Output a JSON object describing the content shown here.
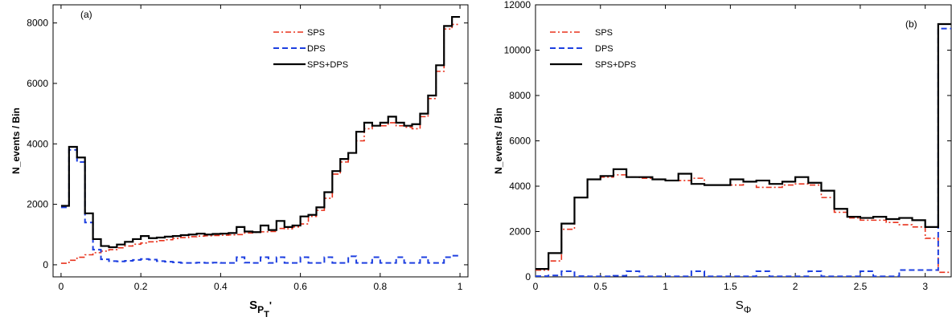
{
  "chart_data": [
    {
      "type": "line",
      "panel_label": "(a)",
      "xlabel": "S",
      "xlabel_sub": "P",
      "xlabel_subsub": "T",
      "xlabel_prime": "'",
      "ylabel": "N_events / Bin",
      "xlim": [
        -0.02,
        1.02
      ],
      "ylim": [
        -400,
        8600
      ],
      "xticks": [
        0,
        0.2,
        0.4,
        0.6,
        0.8,
        1
      ],
      "xtick_labels": [
        "0",
        "0.2",
        "0.4",
        "0.6",
        "0.8",
        "1"
      ],
      "yticks": [
        0,
        2000,
        4000,
        6000,
        8000
      ],
      "ytick_labels": [
        "0",
        "2000",
        "4000",
        "6000",
        "8000"
      ],
      "legend_position": "top-right",
      "bin_edges": [
        0,
        0.02,
        0.04,
        0.06,
        0.08,
        0.1,
        0.12,
        0.14,
        0.16,
        0.18,
        0.2,
        0.22,
        0.24,
        0.26,
        0.28,
        0.3,
        0.32,
        0.34,
        0.36,
        0.38,
        0.4,
        0.42,
        0.44,
        0.46,
        0.48,
        0.5,
        0.52,
        0.54,
        0.56,
        0.58,
        0.6,
        0.62,
        0.64,
        0.66,
        0.68,
        0.7,
        0.72,
        0.74,
        0.76,
        0.78,
        0.8,
        0.82,
        0.84,
        0.86,
        0.88,
        0.9,
        0.92,
        0.94,
        0.96,
        0.98,
        1.0
      ],
      "series": [
        {
          "name": "SPS",
          "color": "#e8321c",
          "style": "dashdot",
          "values": [
            50,
            150,
            250,
            330,
            400,
            450,
            500,
            560,
            620,
            680,
            720,
            760,
            800,
            830,
            870,
            900,
            930,
            950,
            960,
            970,
            980,
            990,
            1000,
            1050,
            1070,
            1090,
            1100,
            1200,
            1190,
            1250,
            1350,
            1600,
            1800,
            2200,
            3000,
            3400,
            3700,
            4100,
            4500,
            4600,
            4600,
            4700,
            4600,
            4550,
            4500,
            4900,
            5500,
            6400,
            7800,
            7950
          ]
        },
        {
          "name": "DPS",
          "color": "#1d3fe0",
          "style": "dashed",
          "values": [
            1900,
            3800,
            3400,
            1400,
            500,
            180,
            120,
            110,
            130,
            160,
            190,
            170,
            120,
            100,
            80,
            60,
            60,
            70,
            60,
            70,
            60,
            60,
            250,
            70,
            60,
            250,
            60,
            250,
            60,
            60,
            250,
            60,
            60,
            250,
            60,
            60,
            280,
            60,
            60,
            250,
            60,
            60,
            250,
            60,
            60,
            250,
            60,
            60,
            250,
            300
          ]
        },
        {
          "name": "SPS+DPS",
          "color": "#000000",
          "style": "solid",
          "values": [
            1950,
            3900,
            3550,
            1700,
            850,
            620,
            580,
            670,
            760,
            850,
            950,
            880,
            900,
            930,
            950,
            980,
            1000,
            1030,
            1000,
            1020,
            1030,
            1050,
            1250,
            1100,
            1080,
            1300,
            1150,
            1450,
            1250,
            1300,
            1600,
            1650,
            1900,
            2400,
            3100,
            3500,
            3700,
            4400,
            4700,
            4600,
            4700,
            4900,
            4700,
            4600,
            4650,
            5000,
            5600,
            6600,
            7900,
            8200
          ]
        }
      ]
    },
    {
      "type": "line",
      "panel_label": "(b)",
      "xlabel": "S",
      "xlabel_sub": "Φ",
      "ylabel": "N_events / Bin",
      "xlim": [
        0,
        3.2
      ],
      "ylim": [
        0,
        12000
      ],
      "xticks": [
        0,
        0.5,
        1,
        1.5,
        2,
        2.5,
        3
      ],
      "xtick_labels": [
        "0",
        "0.5",
        "1",
        "1.5",
        "2",
        "2.5",
        "3"
      ],
      "yticks": [
        0,
        2000,
        4000,
        6000,
        8000,
        10000,
        12000
      ],
      "ytick_labels": [
        "0",
        "2000",
        "4000",
        "6000",
        "8000",
        "10000",
        "12000"
      ],
      "legend_position": "top-left",
      "bin_edges": [
        0,
        0.1,
        0.2,
        0.3,
        0.4,
        0.5,
        0.6,
        0.7,
        0.8,
        0.9,
        1.0,
        1.1,
        1.2,
        1.3,
        1.4,
        1.5,
        1.6,
        1.7,
        1.8,
        1.9,
        2.0,
        2.1,
        2.2,
        2.3,
        2.4,
        2.5,
        2.6,
        2.7,
        2.8,
        2.9,
        3.0,
        3.1,
        3.2
      ],
      "series": [
        {
          "name": "SPS",
          "color": "#e8321c",
          "style": "dashdot",
          "values": [
            300,
            700,
            2100,
            3500,
            4300,
            4400,
            4500,
            4400,
            4350,
            4300,
            4250,
            4250,
            4350,
            4050,
            4050,
            4050,
            4200,
            3950,
            3950,
            4050,
            4100,
            4050,
            3500,
            2850,
            2600,
            2500,
            2500,
            2400,
            2300,
            2200,
            1700,
            200
          ]
        },
        {
          "name": "DPS",
          "color": "#1d3fe0",
          "style": "dashed",
          "values": [
            30,
            60,
            250,
            30,
            20,
            20,
            50,
            250,
            20,
            20,
            20,
            20,
            250,
            20,
            20,
            20,
            20,
            250,
            20,
            20,
            20,
            250,
            20,
            20,
            20,
            250,
            20,
            20,
            300,
            300,
            300,
            10950
          ]
        },
        {
          "name": "SPS+DPS",
          "color": "#000000",
          "style": "solid",
          "values": [
            350,
            1050,
            2350,
            3500,
            4300,
            4450,
            4750,
            4400,
            4400,
            4300,
            4250,
            4550,
            4100,
            4050,
            4050,
            4300,
            4200,
            4250,
            4100,
            4200,
            4400,
            4150,
            3800,
            3000,
            2650,
            2600,
            2650,
            2550,
            2600,
            2500,
            2200,
            11150
          ]
        }
      ]
    }
  ]
}
